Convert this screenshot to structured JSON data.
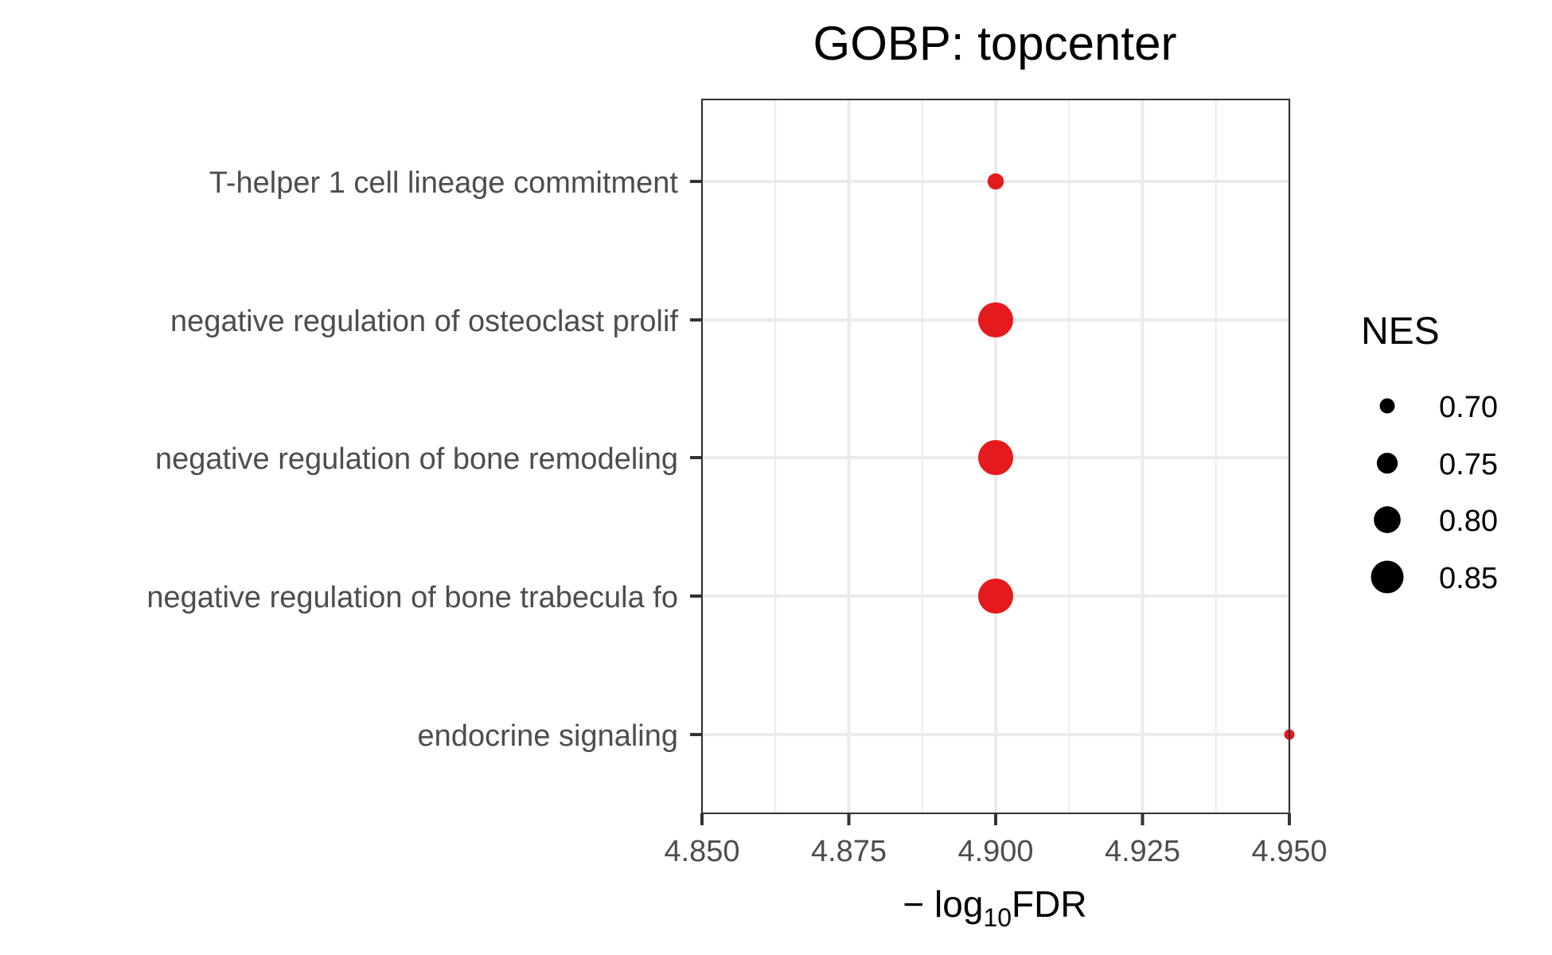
{
  "chart_data": {
    "type": "scatter",
    "title": "GOBP: topcenter",
    "xlabel": {
      "prefix": "− log",
      "subscript": "10",
      "suffix": "FDR"
    },
    "xlim": [
      4.85,
      4.95
    ],
    "x_ticks": [
      4.85,
      4.875,
      4.9,
      4.925,
      4.95
    ],
    "x_tick_labels": [
      "4.850",
      "4.875",
      "4.900",
      "4.925",
      "4.950"
    ],
    "categories": [
      "T-helper 1 cell lineage commitment",
      "negative regulation of osteoclast prolif",
      "negative regulation of bone remodeling",
      "negative regulation of bone trabecula fo",
      "endocrine signaling"
    ],
    "points": [
      {
        "category": "T-helper 1 cell lineage commitment",
        "x": 4.9,
        "nes": 0.71
      },
      {
        "category": "negative regulation of osteoclast prolif",
        "x": 4.9,
        "nes": 0.87
      },
      {
        "category": "negative regulation of bone remodeling",
        "x": 4.9,
        "nes": 0.87
      },
      {
        "category": "negative regulation of bone trabecula fo",
        "x": 4.9,
        "nes": 0.87
      },
      {
        "category": "endocrine signaling",
        "x": 4.95,
        "nes": 0.66
      }
    ],
    "point_color": "#E41A1C",
    "grid": true,
    "legend": {
      "title": "NES",
      "placement": "right",
      "values": [
        0.7,
        0.75,
        0.8,
        0.85
      ],
      "labels": [
        "0.70",
        "0.75",
        "0.80",
        "0.85"
      ]
    }
  }
}
